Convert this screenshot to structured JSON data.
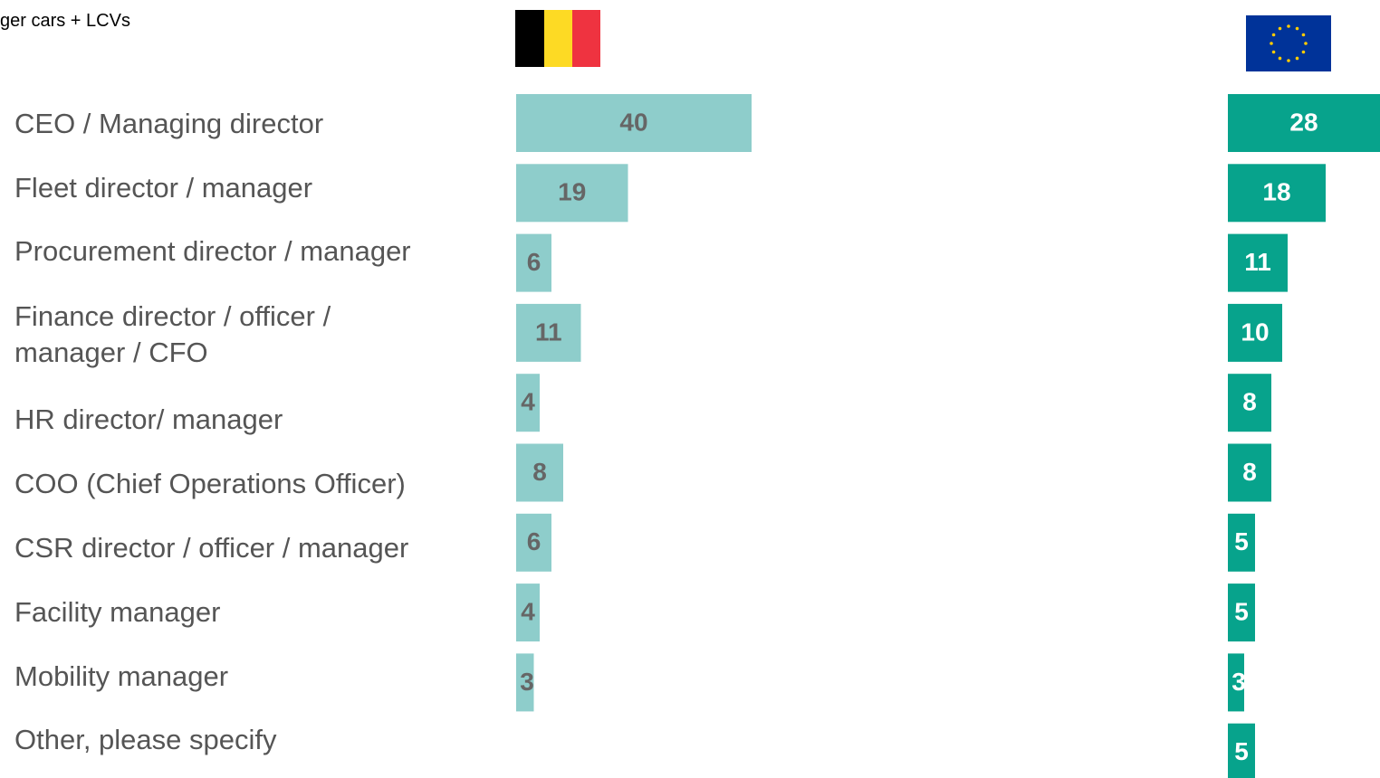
{
  "chart_data": {
    "type": "bar",
    "orientation": "horizontal",
    "title": "ger cars + LCVs",
    "categories": [
      "CEO / Managing director",
      "Fleet director / manager",
      "Procurement director / manager",
      "Finance director / officer / manager / CFO",
      "HR director/ manager",
      "COO (Chief Operations Officer)",
      "CSR director / officer / manager",
      "Facility manager",
      "Mobility manager",
      "Other, please specify"
    ],
    "series": [
      {
        "color": "#8ecdcb",
        "label_color": "#666666",
        "values": [
          40,
          19,
          6,
          11,
          4,
          8,
          6,
          4,
          3,
          null
        ]
      },
      {
        "color": "#07a38c",
        "label_color": "#ffffff",
        "values": [
          28,
          18,
          11,
          10,
          8,
          8,
          5,
          5,
          3,
          5
        ]
      }
    ]
  }
}
